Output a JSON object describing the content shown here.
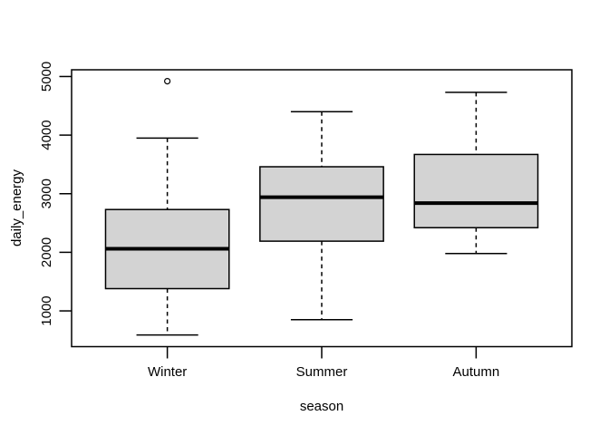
{
  "colors": {
    "background": "#ffffff",
    "box_fill": "#d3d3d3",
    "line": "#000000"
  },
  "chart_data": {
    "type": "boxplot",
    "title": "",
    "xlabel": "season",
    "ylabel": "daily_energy",
    "categories": [
      "Winter",
      "Summer",
      "Autumn"
    ],
    "y_ticks": [
      1000,
      2000,
      3000,
      4000,
      5000
    ],
    "ylim": [
      390,
      5115
    ],
    "grid": false,
    "legend": false,
    "series": [
      {
        "name": "Winter",
        "min": 590,
        "q1": 1380,
        "median": 2060,
        "q3": 2730,
        "max": 3950,
        "outliers": [
          4920
        ]
      },
      {
        "name": "Summer",
        "min": 850,
        "q1": 2190,
        "median": 2940,
        "q3": 3460,
        "max": 4400,
        "outliers": []
      },
      {
        "name": "Autumn",
        "min": 1980,
        "q1": 2420,
        "median": 2840,
        "q3": 3670,
        "max": 4730,
        "outliers": []
      }
    ]
  }
}
